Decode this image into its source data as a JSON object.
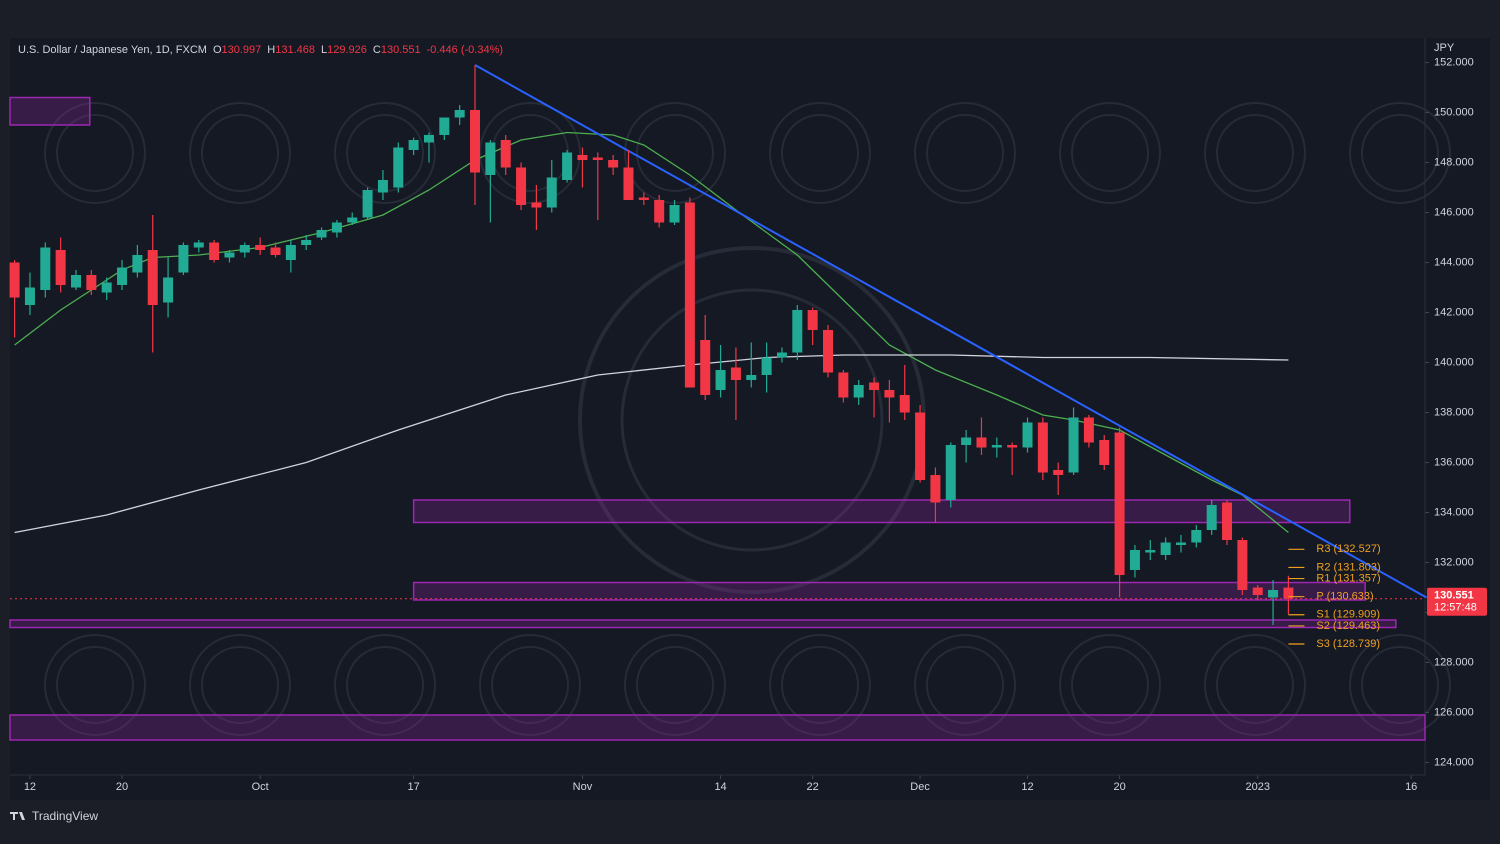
{
  "chart_data": {
    "type": "candlestick",
    "title": "U.S. Dollar / Japanese Yen, 1D, FXCM",
    "ohlc_letters": [
      "O",
      "H",
      "L",
      "C"
    ],
    "change": "-0.446 (-0.34%)",
    "currency": "JPY",
    "brand": "TradingView",
    "countdown": "12:57:48",
    "up_color": "#22ab94",
    "down_color": "#f23645",
    "xlim": [
      -1.3,
      90.9
    ],
    "ylim": [
      123.5,
      152.9
    ],
    "yticks": [
      {
        "value": 124,
        "label": "124.000"
      },
      {
        "value": 126,
        "label": "126.000"
      },
      {
        "value": 128,
        "label": "128.000"
      },
      {
        "value": 130,
        "label": "130.000"
      },
      {
        "value": 132,
        "label": "132.000"
      },
      {
        "value": 134,
        "label": "134.000"
      },
      {
        "value": 136,
        "label": "136.000"
      },
      {
        "value": 138,
        "label": "138.000"
      },
      {
        "value": 140,
        "label": "140.000"
      },
      {
        "value": 142,
        "label": "142.000"
      },
      {
        "value": 144,
        "label": "144.000"
      },
      {
        "value": 146,
        "label": "146.000"
      },
      {
        "value": 148,
        "label": "148.000"
      },
      {
        "value": 150,
        "label": "150.000"
      },
      {
        "value": 152,
        "label": "152.000"
      }
    ],
    "xticks": [
      {
        "value": 0,
        "label": "12"
      },
      {
        "value": 6,
        "label": "20"
      },
      {
        "value": 15,
        "label": "Oct"
      },
      {
        "value": 25,
        "label": "17"
      },
      {
        "value": 36,
        "label": "Nov"
      },
      {
        "value": 45,
        "label": "14"
      },
      {
        "value": 51,
        "label": "22"
      },
      {
        "value": 58,
        "label": "Dec"
      },
      {
        "value": 65,
        "label": "12"
      },
      {
        "value": 71,
        "label": "20"
      },
      {
        "value": 80,
        "label": "2023"
      },
      {
        "value": 90,
        "label": "16"
      }
    ],
    "candles": {
      "x": [
        -1,
        0,
        1,
        2,
        3,
        4,
        5,
        6,
        7,
        8,
        9,
        10,
        11,
        12,
        13,
        14,
        15,
        16,
        17,
        18,
        19,
        20,
        21,
        22,
        23,
        24,
        25,
        26,
        27,
        28,
        29,
        30,
        31,
        32,
        33,
        34,
        35,
        36,
        37,
        38,
        39,
        40,
        41,
        42,
        43,
        44,
        45,
        46,
        47,
        48,
        49,
        50,
        51,
        52,
        53,
        54,
        55,
        56,
        57,
        58,
        59,
        60,
        61,
        62,
        63,
        64,
        65,
        66,
        67,
        68,
        69,
        70,
        71,
        72,
        73,
        74,
        75,
        76,
        77,
        78,
        79,
        80,
        81,
        82
      ],
      "open": [
        144,
        142.3,
        142.9,
        144.5,
        143.0,
        143.5,
        142.8,
        143.1,
        143.6,
        144.5,
        142.4,
        143.6,
        144.6,
        144.8,
        144.2,
        144.4,
        144.7,
        144.6,
        144.1,
        144.7,
        145.0,
        145.2,
        145.6,
        145.8,
        146.8,
        147.0,
        148.5,
        148.8,
        149.1,
        149.8,
        150.1,
        147.5,
        148.9,
        147.8,
        146.4,
        146.2,
        147.3,
        148.3,
        148.2,
        148.1,
        147.8,
        146.6,
        146.5,
        145.6,
        146.4,
        140.9,
        138.9,
        139.8,
        139.3,
        139.5,
        140.2,
        140.4,
        142.1,
        141.3,
        139.6,
        138.6,
        139.2,
        138.9,
        138.7,
        138.0,
        135.5,
        134.5,
        136.7,
        137.0,
        136.6,
        136.7,
        136.6,
        137.6,
        135.7,
        135.6,
        137.8,
        136.9,
        137.2,
        131.7,
        132.4,
        132.3,
        132.7,
        132.8,
        133.3,
        134.4,
        132.9,
        131.0,
        130.6,
        130.997
      ],
      "high": [
        144.1,
        143.6,
        144.8,
        145,
        143.7,
        143.7,
        143.4,
        144.1,
        144.7,
        145.9,
        144.2,
        144.8,
        144.9,
        144.9,
        144.5,
        144.8,
        145,
        144.8,
        144.9,
        145.1,
        145.4,
        145.7,
        146,
        147,
        147.7,
        148.8,
        149.0,
        149.2,
        149.8,
        150.3,
        151.9,
        148.9,
        149.1,
        148,
        147.1,
        148.1,
        148.5,
        148.6,
        148.4,
        148.3,
        148.5,
        146.8,
        146.7,
        146.5,
        146.6,
        141.9,
        140.7,
        140.6,
        140.8,
        140.8,
        140.6,
        142.3,
        142.2,
        141.5,
        139.7,
        139.3,
        139.4,
        139.3,
        139.9,
        138.3,
        135.8,
        136.8,
        137.3,
        137.8,
        137.0,
        136.8,
        137.8,
        137.8,
        136,
        138.2,
        137.9,
        137.1,
        137.4,
        132.7,
        132.9,
        133.0,
        133.1,
        133.5,
        134.5,
        134.5,
        133.0,
        131.1,
        131.3,
        131.468
      ],
      "low": [
        141,
        141.9,
        142.6,
        142.8,
        142.9,
        142.7,
        142.5,
        142.9,
        143.4,
        140.4,
        141.8,
        143.5,
        144.4,
        144,
        144.0,
        144.2,
        144.3,
        144.2,
        143.6,
        144.5,
        144.9,
        145,
        145.5,
        145.7,
        146.5,
        146.8,
        148.3,
        148.0,
        148.9,
        149.5,
        146.3,
        145.6,
        147.5,
        146.1,
        145.3,
        146.0,
        147.2,
        147.0,
        145.7,
        147.5,
        146.5,
        146.3,
        145.4,
        145.5,
        139.0,
        138.5,
        138.6,
        137.7,
        139.0,
        138.8,
        140.0,
        140.1,
        140.7,
        139.4,
        138.4,
        138.3,
        137.8,
        137.6,
        137.7,
        135.2,
        133.6,
        134.2,
        136.0,
        136.3,
        136.2,
        135.5,
        136.4,
        135.3,
        134.7,
        135.5,
        136.6,
        135.7,
        130.6,
        131.4,
        132.1,
        132.1,
        132.4,
        132.6,
        133.1,
        132.7,
        130.7,
        130.5,
        129.5,
        129.926
      ],
      "close": [
        142.6,
        143.0,
        144.6,
        143.1,
        143.5,
        142.9,
        143.2,
        143.8,
        144.3,
        142.3,
        143.4,
        144.7,
        144.8,
        144.1,
        144.4,
        144.7,
        144.5,
        144.3,
        144.7,
        144.9,
        145.3,
        145.6,
        145.8,
        146.9,
        147.3,
        148.6,
        148.9,
        149.1,
        149.8,
        150.1,
        147.6,
        148.8,
        147.8,
        146.3,
        146.2,
        147.4,
        148.4,
        148.1,
        148.1,
        147.8,
        146.5,
        146.5,
        145.6,
        146.3,
        139.0,
        138.7,
        139.7,
        139.3,
        139.5,
        140.2,
        140.4,
        142.1,
        141.3,
        139.6,
        138.6,
        139.1,
        138.9,
        138.6,
        138.0,
        135.3,
        134.4,
        136.7,
        137.0,
        136.6,
        136.7,
        136.6,
        137.6,
        135.6,
        135.5,
        137.8,
        136.8,
        135.9,
        131.5,
        132.5,
        132.5,
        132.8,
        132.8,
        133.3,
        134.3,
        132.9,
        130.9,
        130.7,
        130.9,
        130.551
      ]
    },
    "lines": [
      {
        "color": "#4caf50",
        "x": [
          -1,
          2,
          6,
          8,
          11,
          15,
          19,
          23,
          26,
          29,
          32,
          35,
          38,
          40,
          43,
          46,
          50,
          53,
          56,
          59,
          63,
          66,
          68,
          71,
          74,
          77,
          79,
          82
        ],
        "values": [
          140.7,
          142.1,
          143.7,
          144.2,
          144.3,
          144.6,
          145.2,
          145.9,
          146.9,
          148.1,
          148.9,
          149.2,
          149.1,
          148.7,
          147.5,
          146.1,
          144.3,
          142.5,
          140.7,
          139.7,
          138.7,
          137.9,
          137.7,
          137.3,
          136.3,
          135.3,
          134.7,
          133.2
        ]
      },
      {
        "color": "#d1d4dc",
        "x": [
          -1,
          5,
          11,
          18,
          24,
          31,
          37,
          43,
          48,
          53,
          60,
          66,
          73,
          82
        ],
        "values": [
          133.2,
          133.9,
          134.9,
          136.0,
          137.3,
          138.7,
          139.5,
          139.9,
          140.2,
          140.3,
          140.3,
          140.2,
          140.2,
          140.1
        ]
      },
      {
        "color": "#2962ff",
        "x": [
          29,
          91
        ],
        "values": [
          151.9,
          130.6
        ]
      }
    ],
    "zones": [
      {
        "x": [
          -1.3,
          3.9
        ],
        "y": [
          149.5,
          150.6
        ]
      },
      {
        "x": [
          25.0,
          86.0
        ],
        "y": [
          133.6,
          134.5
        ]
      },
      {
        "x": [
          25.0,
          87.0
        ],
        "y": [
          130.5,
          131.2
        ]
      },
      {
        "x": [
          -1.3,
          89.0
        ],
        "y": [
          129.4,
          129.7
        ]
      },
      {
        "x": [
          -1.3,
          90.9
        ],
        "y": [
          124.9,
          125.9
        ]
      }
    ],
    "zone_color": "#9c27b0",
    "pivot_color": "#f0a020",
    "pivots": [
      {
        "value": 132.527,
        "label": "R3 (132.527)"
      },
      {
        "value": 131.803,
        "label": "R2 (131.803)"
      },
      {
        "value": 131.357,
        "label": "R1 (131.357)"
      },
      {
        "value": 130.633,
        "label": "P (130.633)"
      },
      {
        "value": 129.909,
        "label": "S1 (129.909)"
      },
      {
        "value": 129.463,
        "label": "S2 (129.463)"
      },
      {
        "value": 128.739,
        "label": "S3 (128.739)"
      }
    ]
  }
}
